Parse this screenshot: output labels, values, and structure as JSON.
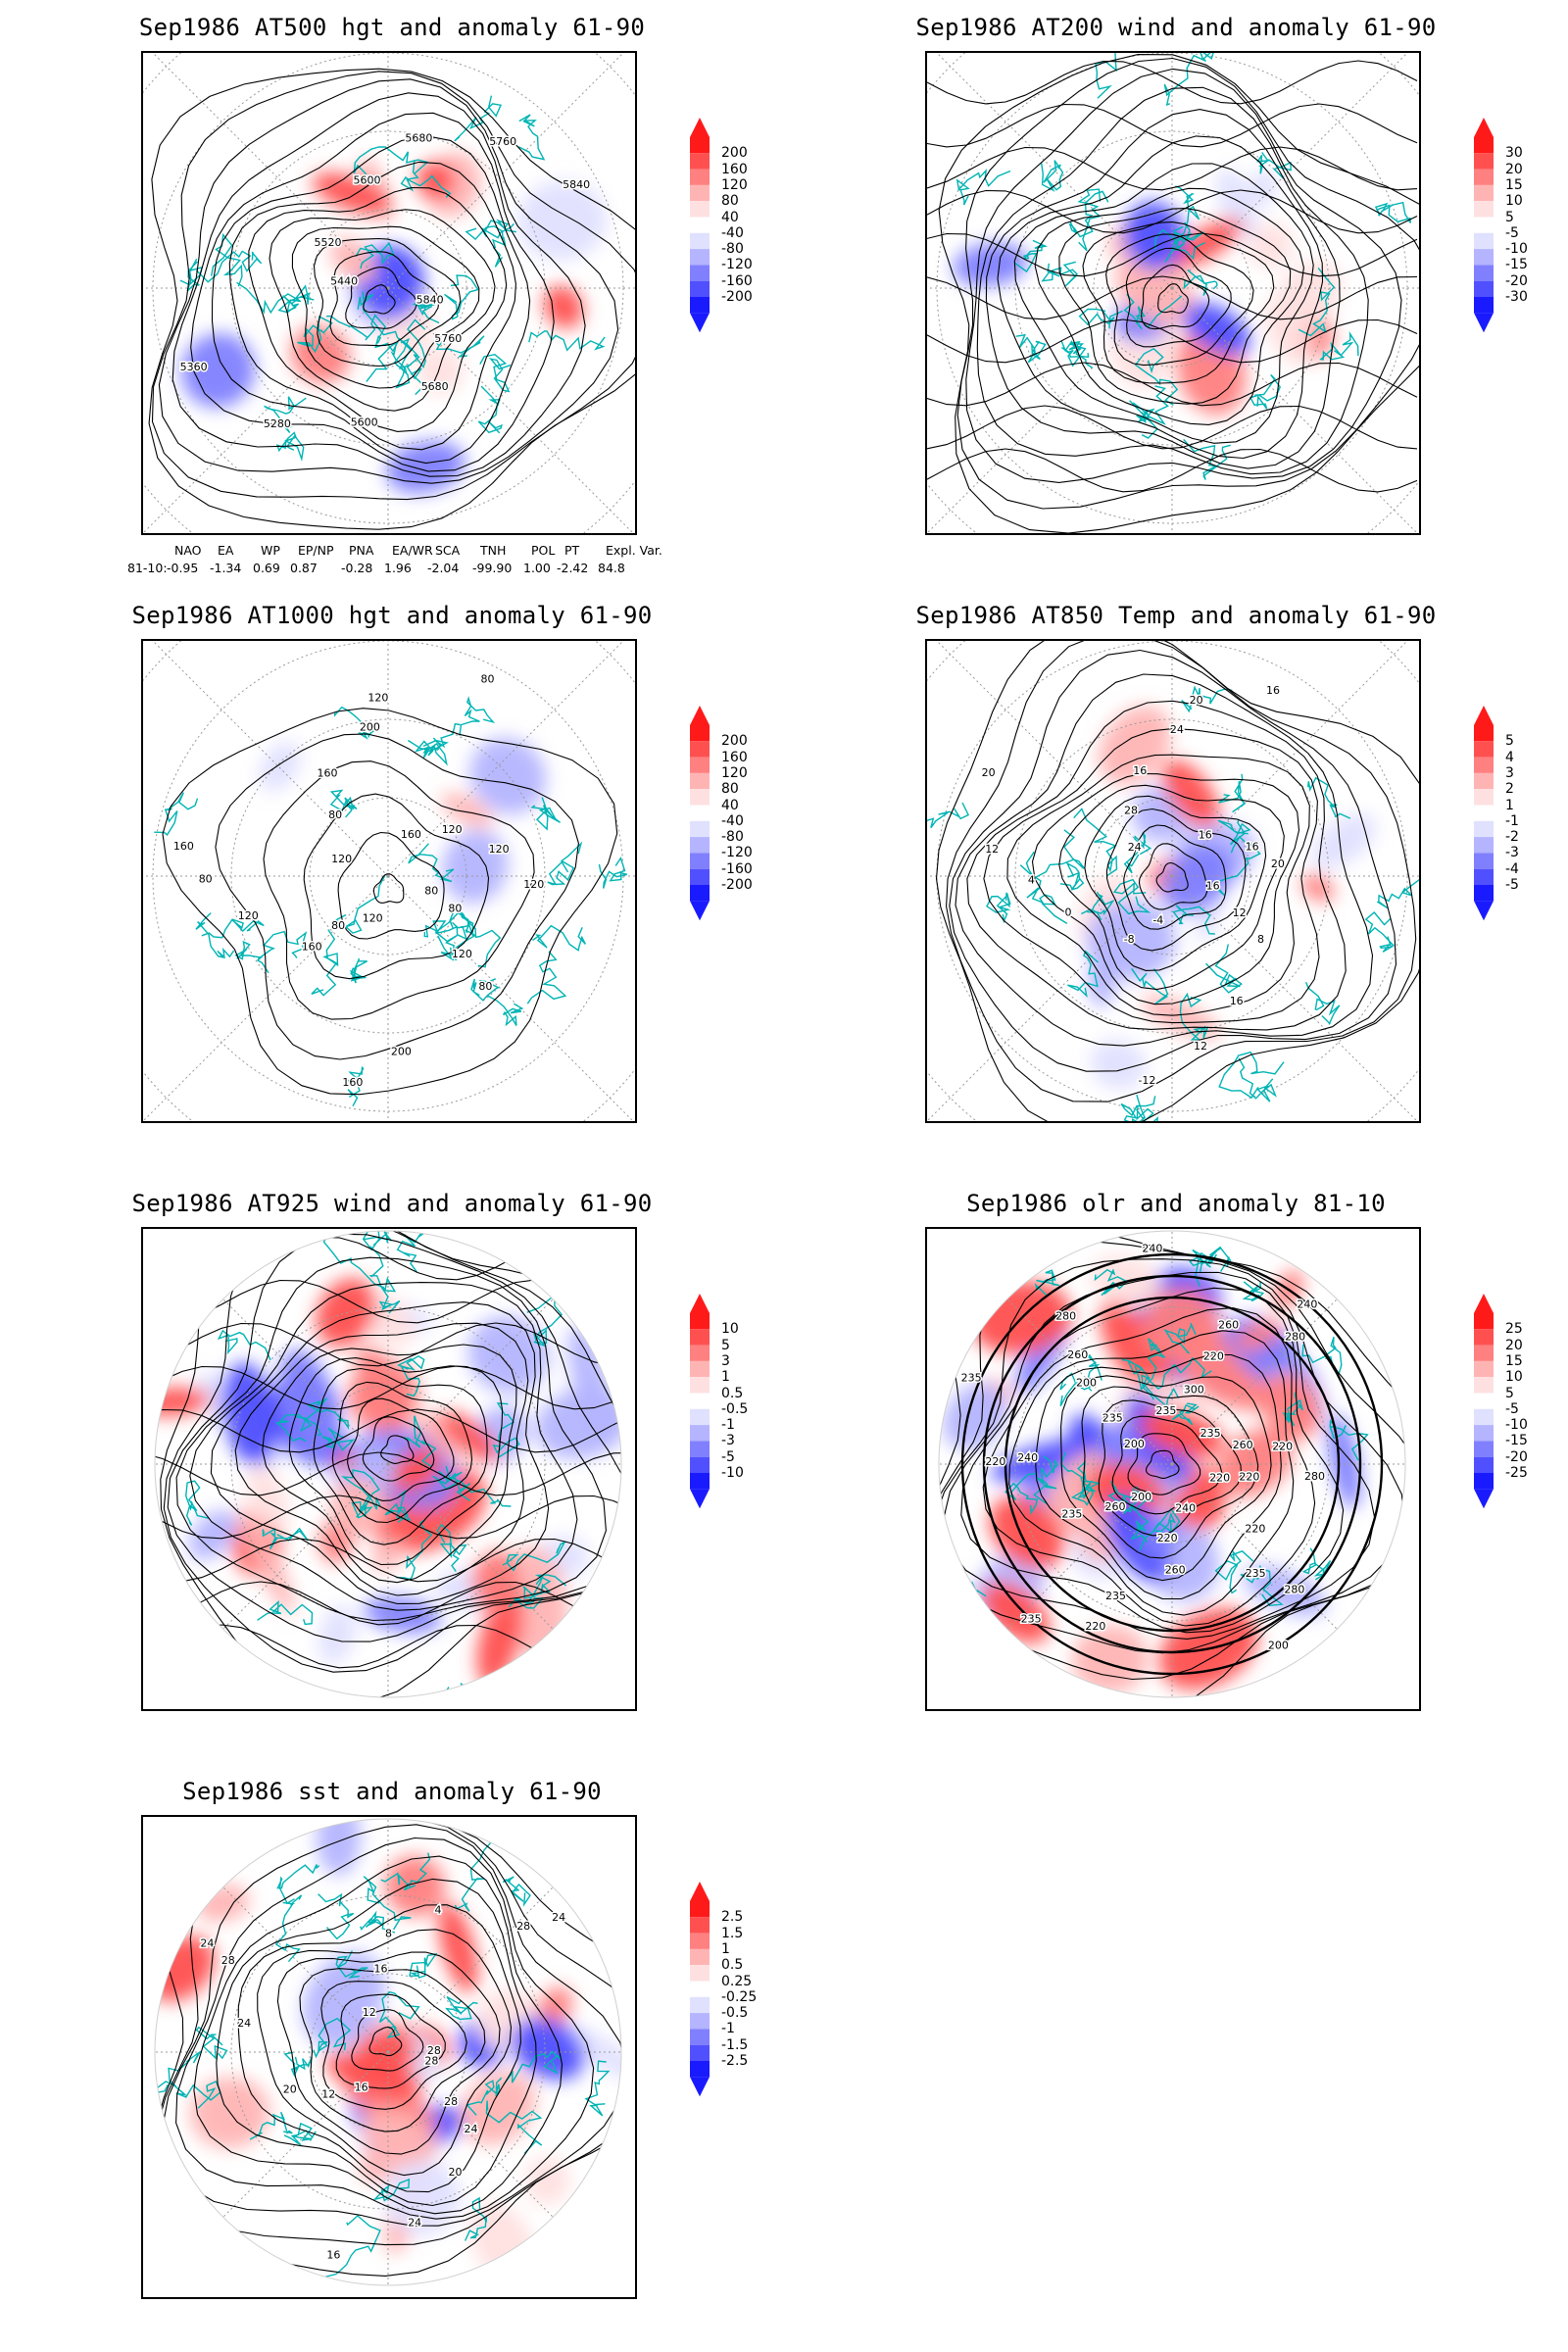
{
  "chart_data": [
    {
      "type": "heatmap",
      "title": "Sep1986 AT500 hgt and anomaly 61-90",
      "colorbar_levels": [
        "200",
        "160",
        "120",
        "80",
        "40",
        "-40",
        "-80",
        "-120",
        "-160",
        "-200"
      ],
      "contour_labels": [
        "5840",
        "5760",
        "5680",
        "5600",
        "5280",
        "5360",
        "5440",
        "5520",
        "5600",
        "5680",
        "5760",
        "5840"
      ],
      "style": "cold",
      "table": {
        "headers": [
          "NAO",
          "EA",
          "WP",
          "EP/NP",
          "PNA",
          "EA/WR",
          "SCA",
          "TNH",
          "POL",
          "PT",
          "Expl. Var."
        ],
        "row_label": "81-10:",
        "values": [
          "-0.95",
          "-1.34",
          "0.69",
          "0.87",
          "-0.28",
          "1.96",
          "-2.04",
          "-99.90",
          "1.00",
          "-2.42",
          "84.8"
        ]
      }
    },
    {
      "type": "heatmap",
      "title": "Sep1986 AT200 wind and anomaly 61-90",
      "colorbar_levels": [
        "30",
        "20",
        "15",
        "10",
        "5",
        "-5",
        "-10",
        "-15",
        "-20",
        "-30"
      ],
      "contour_labels": [],
      "style": "stream"
    },
    {
      "type": "heatmap",
      "title": "Sep1986 AT1000 hgt and anomaly 61-90",
      "colorbar_levels": [
        "200",
        "160",
        "120",
        "80",
        "40",
        "-40",
        "-80",
        "-120",
        "-160",
        "-200"
      ],
      "contour_labels": [
        "80",
        "80",
        "120",
        "80",
        "200",
        "160",
        "120",
        "80",
        "160",
        "120",
        "80",
        "160",
        "120",
        "80",
        "160",
        "200",
        "120",
        "80",
        "160",
        "120",
        "120",
        "120"
      ],
      "style": "calm"
    },
    {
      "type": "heatmap",
      "title": "Sep1986 AT850 Temp and anomaly 61-90",
      "colorbar_levels": [
        "5",
        "4",
        "3",
        "2",
        "1",
        "-1",
        "-2",
        "-3",
        "-4",
        "-5"
      ],
      "contour_labels": [
        "16",
        "12",
        "8",
        "16",
        "12",
        "-12",
        "-4",
        "-8",
        "0",
        "4",
        "12",
        "20",
        "24",
        "28",
        "16",
        "24",
        "20",
        "16",
        "16",
        "16",
        "20"
      ],
      "style": "cold"
    },
    {
      "type": "heatmap",
      "title": "Sep1986 AT925 wind and anomaly 61-90",
      "colorbar_levels": [
        "10",
        "5",
        "3",
        "1",
        "0.5",
        "-0.5",
        "-1",
        "-3",
        "-5",
        "-10"
      ],
      "contour_labels": [],
      "style": "disk-stream"
    },
    {
      "type": "heatmap",
      "title": "Sep1986 olr and anomaly 81-10",
      "colorbar_levels": [
        "25",
        "20",
        "15",
        "10",
        "5",
        "-5",
        "-10",
        "-15",
        "-20",
        "-25"
      ],
      "contour_labels": [
        "220",
        "220",
        "220",
        "235",
        "280",
        "200",
        "240",
        "220",
        "260",
        "235",
        "220",
        "235",
        "200",
        "260",
        "235",
        "240",
        "220",
        "235",
        "200",
        "235",
        "200",
        "260",
        "280",
        "240",
        "235",
        "300",
        "220",
        "260",
        "280",
        "240",
        "235",
        "260",
        "220",
        "280"
      ],
      "style": "disk-olr"
    },
    {
      "type": "heatmap",
      "title": "Sep1986 sst and anomaly 61-90",
      "colorbar_levels": [
        "2.5",
        "1.5",
        "1",
        "0.5",
        "0.25",
        "-0.25",
        "-0.5",
        "-1",
        "-1.5",
        "-2.5"
      ],
      "contour_labels": [
        "28",
        "28",
        "24",
        "20",
        "24",
        "16",
        "16",
        "12",
        "20",
        "24",
        "28",
        "24",
        "12",
        "16",
        "8",
        "4",
        "28",
        "24",
        "28"
      ],
      "style": "disk-sst"
    }
  ],
  "colors": {
    "coast": "#00b4b4",
    "contour": "#000000",
    "grid": "#9a9a9a",
    "positive": [
      "#ff1a1a",
      "#ff5050",
      "#ff8080",
      "#ffb4b4",
      "#ffe0e0"
    ],
    "negative": [
      "#e0e0ff",
      "#b4b4ff",
      "#8080ff",
      "#5050ff",
      "#1a1aff"
    ]
  }
}
